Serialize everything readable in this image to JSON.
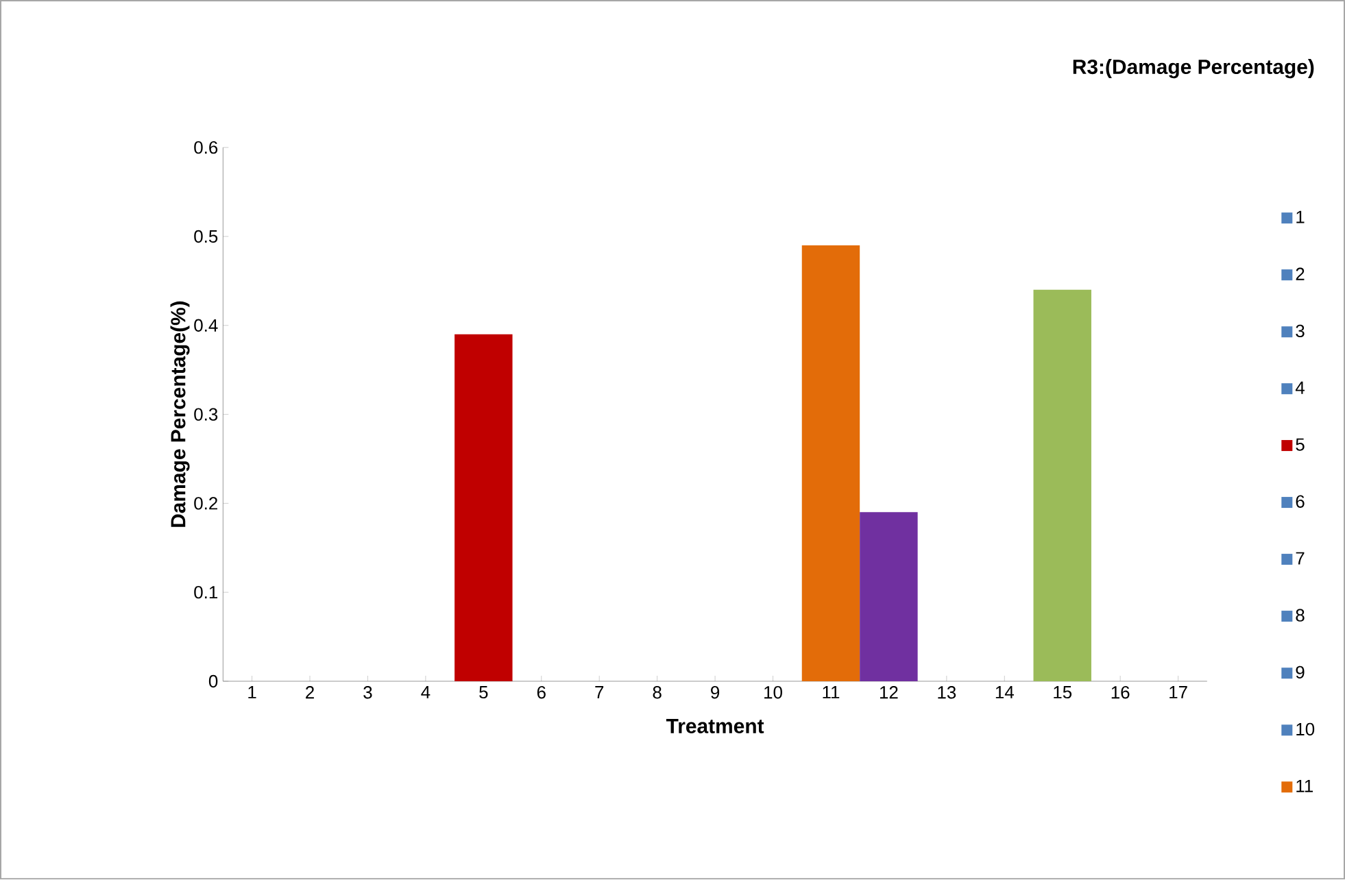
{
  "chart_data": {
    "type": "bar",
    "title": "R3:(Damage Percentage)",
    "xlabel": "Treatment",
    "ylabel": "Damage Percentage(%)",
    "categories": [
      "1",
      "2",
      "3",
      "4",
      "5",
      "6",
      "7",
      "8",
      "9",
      "10",
      "11",
      "12",
      "13",
      "14",
      "15",
      "16",
      "17"
    ],
    "series": [
      {
        "name": "1",
        "color": "#4f81bd",
        "values": [
          0,
          null,
          null,
          null,
          null,
          null,
          null,
          null,
          null,
          null,
          null,
          null,
          null,
          null,
          null,
          null,
          null
        ]
      },
      {
        "name": "2",
        "color": "#4f81bd",
        "values": [
          null,
          0,
          null,
          null,
          null,
          null,
          null,
          null,
          null,
          null,
          null,
          null,
          null,
          null,
          null,
          null,
          null
        ]
      },
      {
        "name": "3",
        "color": "#4f81bd",
        "values": [
          null,
          null,
          0,
          null,
          null,
          null,
          null,
          null,
          null,
          null,
          null,
          null,
          null,
          null,
          null,
          null,
          null
        ]
      },
      {
        "name": "4",
        "color": "#4f81bd",
        "values": [
          null,
          null,
          null,
          0,
          null,
          null,
          null,
          null,
          null,
          null,
          null,
          null,
          null,
          null,
          null,
          null,
          null
        ]
      },
      {
        "name": "5",
        "color": "#c00000",
        "values": [
          null,
          null,
          null,
          null,
          0.39,
          null,
          null,
          null,
          null,
          null,
          null,
          null,
          null,
          null,
          null,
          null,
          null
        ]
      },
      {
        "name": "6",
        "color": "#4f81bd",
        "values": [
          null,
          null,
          null,
          null,
          null,
          0,
          null,
          null,
          null,
          null,
          null,
          null,
          null,
          null,
          null,
          null,
          null
        ]
      },
      {
        "name": "7",
        "color": "#4f81bd",
        "values": [
          null,
          null,
          null,
          null,
          null,
          null,
          0,
          null,
          null,
          null,
          null,
          null,
          null,
          null,
          null,
          null,
          null
        ]
      },
      {
        "name": "8",
        "color": "#4f81bd",
        "values": [
          null,
          null,
          null,
          null,
          null,
          null,
          null,
          0,
          null,
          null,
          null,
          null,
          null,
          null,
          null,
          null,
          null
        ]
      },
      {
        "name": "9",
        "color": "#4f81bd",
        "values": [
          null,
          null,
          null,
          null,
          null,
          null,
          null,
          null,
          0,
          null,
          null,
          null,
          null,
          null,
          null,
          null,
          null
        ]
      },
      {
        "name": "10",
        "color": "#4f81bd",
        "values": [
          null,
          null,
          null,
          null,
          null,
          null,
          null,
          null,
          null,
          0,
          null,
          null,
          null,
          null,
          null,
          null,
          null
        ]
      },
      {
        "name": "11",
        "color": "#e36c09",
        "values": [
          null,
          null,
          null,
          null,
          null,
          null,
          null,
          null,
          null,
          null,
          0.49,
          null,
          null,
          null,
          null,
          null,
          null
        ]
      },
      {
        "color": "#7030a0",
        "values": [
          null,
          null,
          null,
          null,
          null,
          null,
          null,
          null,
          null,
          null,
          null,
          0.19,
          null,
          null,
          null,
          null,
          null
        ]
      },
      {
        "color": "#4f81bd",
        "values": [
          null,
          null,
          null,
          null,
          null,
          null,
          null,
          null,
          null,
          null,
          null,
          null,
          0,
          null,
          null,
          null,
          null
        ]
      },
      {
        "color": "#4f81bd",
        "values": [
          null,
          null,
          null,
          null,
          null,
          null,
          null,
          null,
          null,
          null,
          null,
          null,
          null,
          0,
          null,
          null,
          null
        ]
      },
      {
        "color": "#9bbb59",
        "values": [
          null,
          null,
          null,
          null,
          null,
          null,
          null,
          null,
          null,
          null,
          null,
          null,
          null,
          null,
          0.44,
          null,
          null
        ]
      },
      {
        "color": "#4f81bd",
        "values": [
          null,
          null,
          null,
          null,
          null,
          null,
          null,
          null,
          null,
          null,
          null,
          null,
          null,
          null,
          null,
          0,
          null
        ]
      },
      {
        "color": "#4f81bd",
        "values": [
          null,
          null,
          null,
          null,
          null,
          null,
          null,
          null,
          null,
          null,
          null,
          null,
          null,
          null,
          null,
          null,
          0
        ]
      }
    ],
    "ylim": [
      0,
      0.6
    ],
    "yticks": [
      0,
      0.1,
      0.2,
      0.3,
      0.4,
      0.5,
      0.6
    ],
    "grid": false,
    "legend": "right"
  }
}
